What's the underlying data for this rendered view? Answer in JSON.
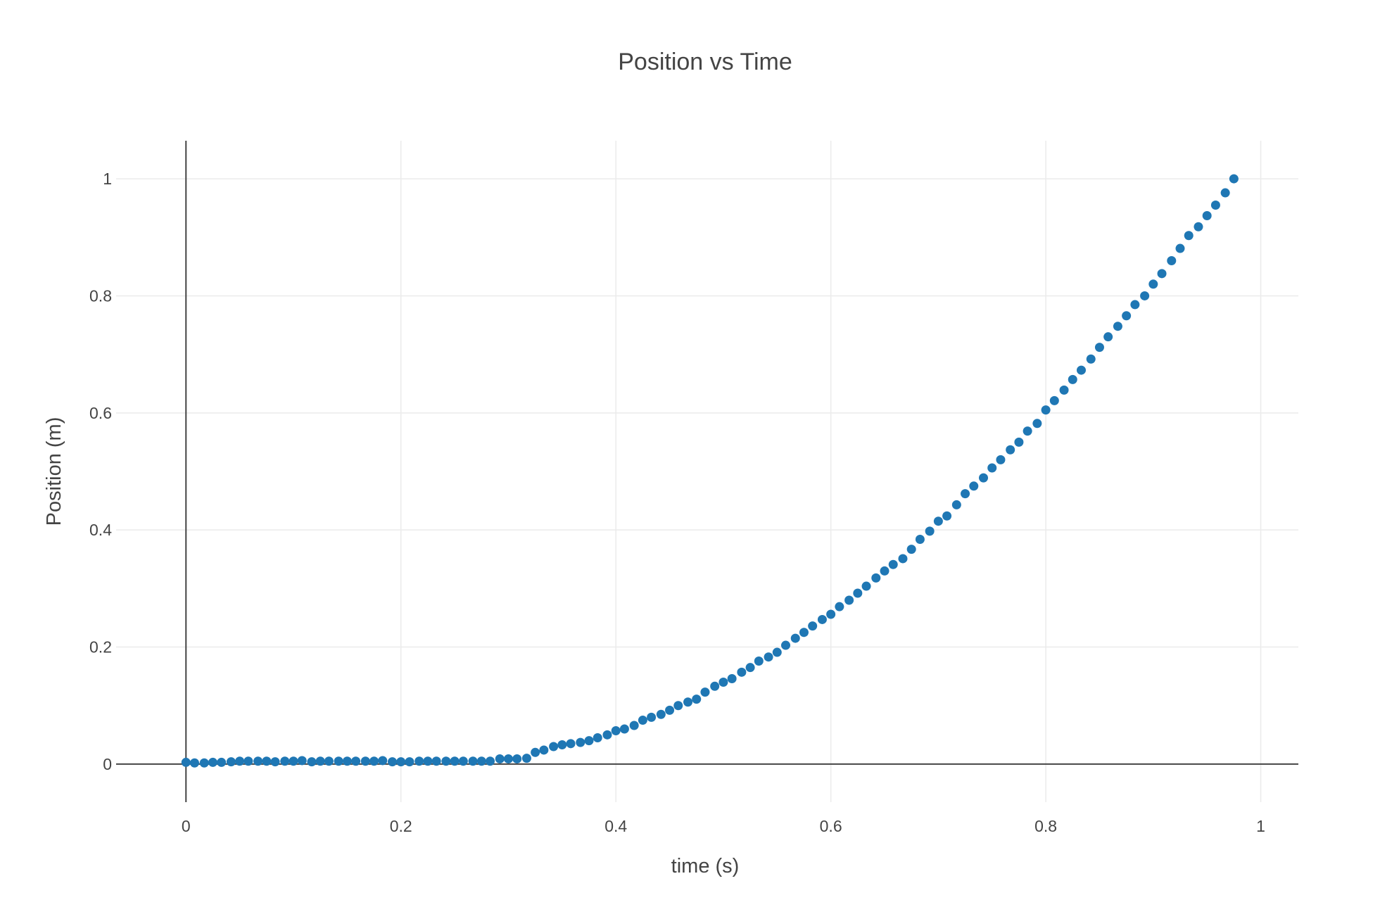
{
  "chart_data": {
    "type": "scatter",
    "title": "Position vs Time",
    "xlabel": "time (s)",
    "ylabel": "Position (m)",
    "xlim": [
      -0.065,
      1.035
    ],
    "ylim": [
      -0.065,
      1.065
    ],
    "grid": true,
    "legend": "none",
    "marker_color": "#1f77b4",
    "x_ticks": [
      0,
      0.2,
      0.4,
      0.6,
      0.8,
      1
    ],
    "x_tick_labels": [
      "0",
      "0.2",
      "0.4",
      "0.6",
      "0.8",
      "1"
    ],
    "y_ticks": [
      0,
      0.2,
      0.4,
      0.6,
      0.8,
      1
    ],
    "y_tick_labels": [
      "0",
      "0.2",
      "0.4",
      "0.6",
      "0.8",
      "1"
    ],
    "series": [
      {
        "x": [
          0,
          0.008,
          0.017,
          0.025,
          0.033,
          0.042,
          0.05,
          0.058,
          0.067,
          0.075,
          0.083,
          0.092,
          0.1,
          0.108,
          0.117,
          0.125,
          0.133,
          0.142,
          0.15,
          0.158,
          0.167,
          0.175,
          0.183,
          0.192,
          0.2,
          0.208,
          0.217,
          0.225,
          0.233,
          0.242,
          0.25,
          0.258,
          0.267,
          0.275,
          0.283,
          0.292,
          0.3,
          0.308,
          0.317,
          0.325,
          0.333,
          0.342,
          0.35,
          0.358,
          0.367,
          0.375,
          0.383,
          0.392,
          0.4,
          0.408,
          0.417,
          0.425,
          0.433,
          0.442,
          0.45,
          0.458,
          0.467,
          0.475,
          0.483,
          0.492,
          0.5,
          0.508,
          0.517,
          0.525,
          0.533,
          0.542,
          0.55,
          0.558,
          0.567,
          0.575,
          0.583,
          0.592,
          0.6,
          0.608,
          0.617,
          0.625,
          0.633,
          0.642,
          0.65,
          0.658,
          0.667,
          0.675,
          0.683,
          0.692,
          0.7,
          0.708,
          0.717,
          0.725,
          0.733,
          0.742,
          0.75,
          0.758,
          0.767,
          0.775,
          0.783,
          0.792,
          0.8,
          0.808,
          0.817,
          0.825,
          0.833,
          0.842,
          0.85,
          0.858,
          0.867,
          0.875,
          0.883,
          0.892,
          0.9,
          0.908,
          0.917,
          0.925,
          0.933,
          0.942,
          0.95,
          0.958,
          0.967,
          0.975
        ],
        "y": [
          0.003,
          0.002,
          0.002,
          0.003,
          0.003,
          0.004,
          0.005,
          0.005,
          0.005,
          0.005,
          0.004,
          0.005,
          0.005,
          0.006,
          0.004,
          0.005,
          0.005,
          0.005,
          0.005,
          0.005,
          0.005,
          0.005,
          0.006,
          0.004,
          0.004,
          0.004,
          0.005,
          0.005,
          0.005,
          0.005,
          0.005,
          0.005,
          0.005,
          0.005,
          0.005,
          0.009,
          0.009,
          0.009,
          0.01,
          0.02,
          0.024,
          0.03,
          0.033,
          0.035,
          0.037,
          0.04,
          0.045,
          0.05,
          0.057,
          0.06,
          0.066,
          0.075,
          0.08,
          0.085,
          0.092,
          0.1,
          0.106,
          0.111,
          0.123,
          0.133,
          0.14,
          0.146,
          0.157,
          0.165,
          0.176,
          0.183,
          0.191,
          0.203,
          0.215,
          0.225,
          0.236,
          0.247,
          0.256,
          0.269,
          0.28,
          0.292,
          0.304,
          0.318,
          0.33,
          0.341,
          0.351,
          0.367,
          0.384,
          0.398,
          0.415,
          0.424,
          0.443,
          0.462,
          0.475,
          0.489,
          0.506,
          0.52,
          0.537,
          0.55,
          0.569,
          0.582,
          0.605,
          0.621,
          0.639,
          0.657,
          0.673,
          0.692,
          0.712,
          0.73,
          0.748,
          0.766,
          0.785,
          0.8,
          0.82,
          0.838,
          0.86,
          0.881,
          0.903,
          0.918,
          0.937,
          0.955,
          0.976,
          1.0
        ]
      }
    ]
  }
}
